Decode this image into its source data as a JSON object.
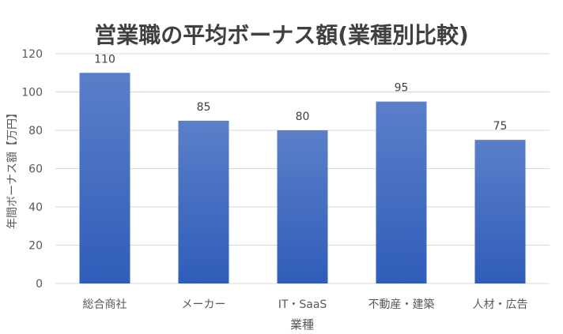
{
  "chart_data": {
    "type": "bar",
    "title": "営業職の平均ボーナス額(業種別比較)",
    "xlabel": "業種",
    "ylabel": "年間ボーナス額【万円】",
    "categories": [
      "総合商社",
      "メーカー",
      "IT・SaaS",
      "不動産・建築",
      "人材・広告"
    ],
    "values": [
      110,
      85,
      80,
      95,
      75
    ],
    "ylim": [
      0,
      120
    ],
    "yticks": [
      0,
      20,
      40,
      60,
      80,
      100,
      120
    ],
    "grid": true,
    "legend": "none",
    "data_labels": true,
    "colors": {
      "bar_top": "#5B7FC9",
      "bar_bottom": "#2F5DB9",
      "grid": "#D9D9D9",
      "axis_text": "#595959",
      "title_text": "#404040"
    }
  }
}
